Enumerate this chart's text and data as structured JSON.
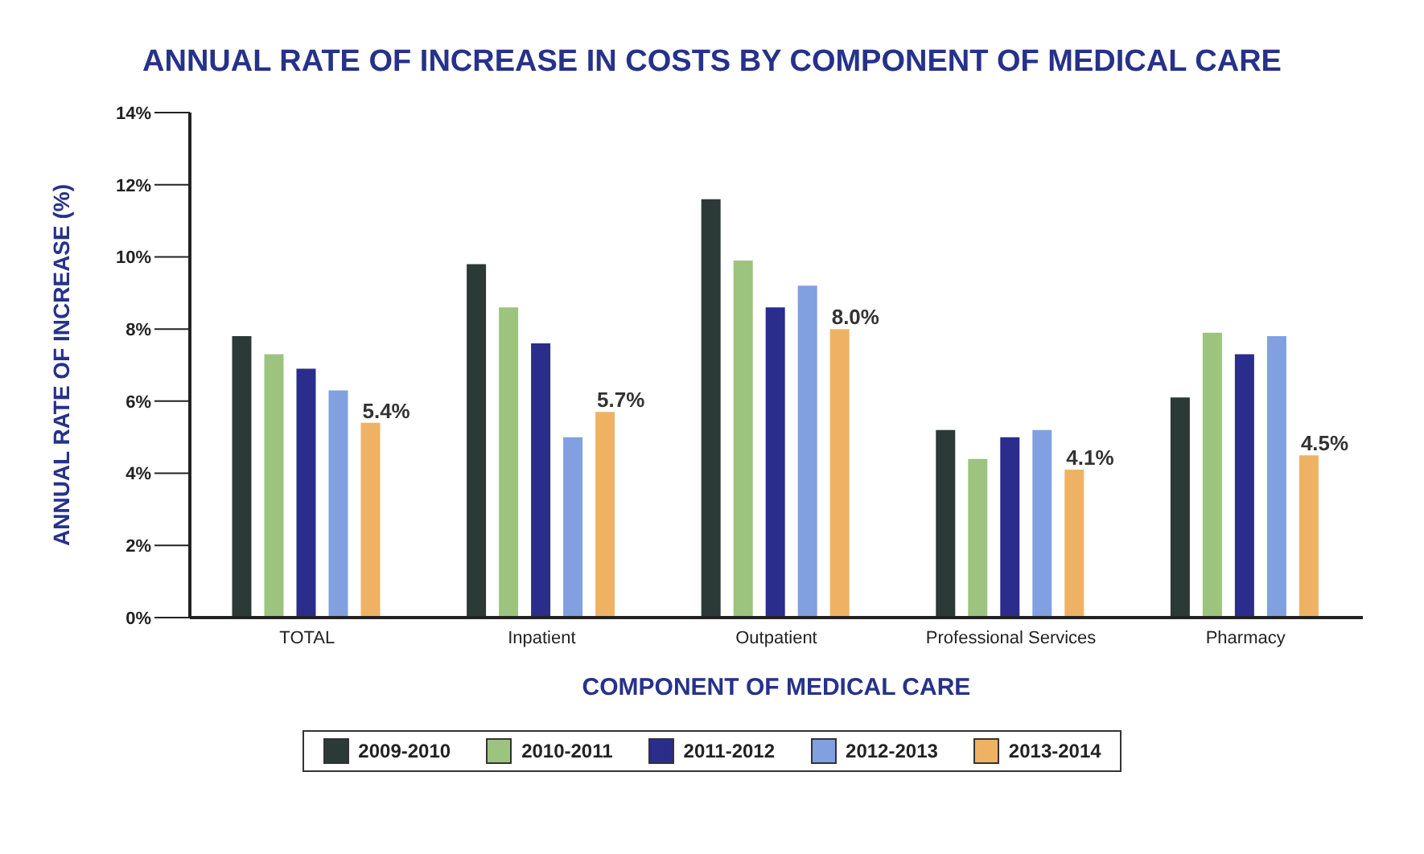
{
  "chart_data": {
    "type": "bar",
    "title": "ANNUAL RATE OF INCREASE IN COSTS BY COMPONENT OF MEDICAL CARE",
    "xlabel": "COMPONENT OF MEDICAL CARE",
    "ylabel": "ANNUAL RATE OF INCREASE (%)",
    "categories": [
      "TOTAL",
      "Inpatient",
      "Outpatient",
      "Professional Services",
      "Pharmacy"
    ],
    "series": [
      {
        "name": "2009-2010",
        "color": "#2b3a36",
        "values": [
          7.8,
          9.8,
          11.6,
          5.2,
          6.1
        ]
      },
      {
        "name": "2010-2011",
        "color": "#9cc47e",
        "values": [
          7.3,
          8.6,
          9.9,
          4.4,
          7.9
        ]
      },
      {
        "name": "2011-2012",
        "color": "#2a2d8c",
        "values": [
          6.9,
          7.6,
          8.6,
          5.0,
          7.3
        ]
      },
      {
        "name": "2012-2013",
        "color": "#80a0e0",
        "values": [
          6.3,
          5.0,
          9.2,
          5.2,
          7.8
        ]
      },
      {
        "name": "2013-2014",
        "color": "#efb265",
        "values": [
          5.4,
          5.7,
          8.0,
          4.1,
          4.5
        ],
        "value_labels": [
          "5.4%",
          "5.7%",
          "8.0%",
          "4.1%",
          "4.5%"
        ]
      }
    ],
    "ylim": [
      0,
      14
    ],
    "yticks": [
      {
        "value": 0,
        "label": "0%"
      },
      {
        "value": 2,
        "label": "2%"
      },
      {
        "value": 4,
        "label": "4%"
      },
      {
        "value": 6,
        "label": "6%"
      },
      {
        "value": 8,
        "label": "8%"
      },
      {
        "value": 10,
        "label": "10%"
      },
      {
        "value": 12,
        "label": "12%"
      },
      {
        "value": 14,
        "label": "14%"
      }
    ],
    "grid": false,
    "legend": "bottom"
  }
}
